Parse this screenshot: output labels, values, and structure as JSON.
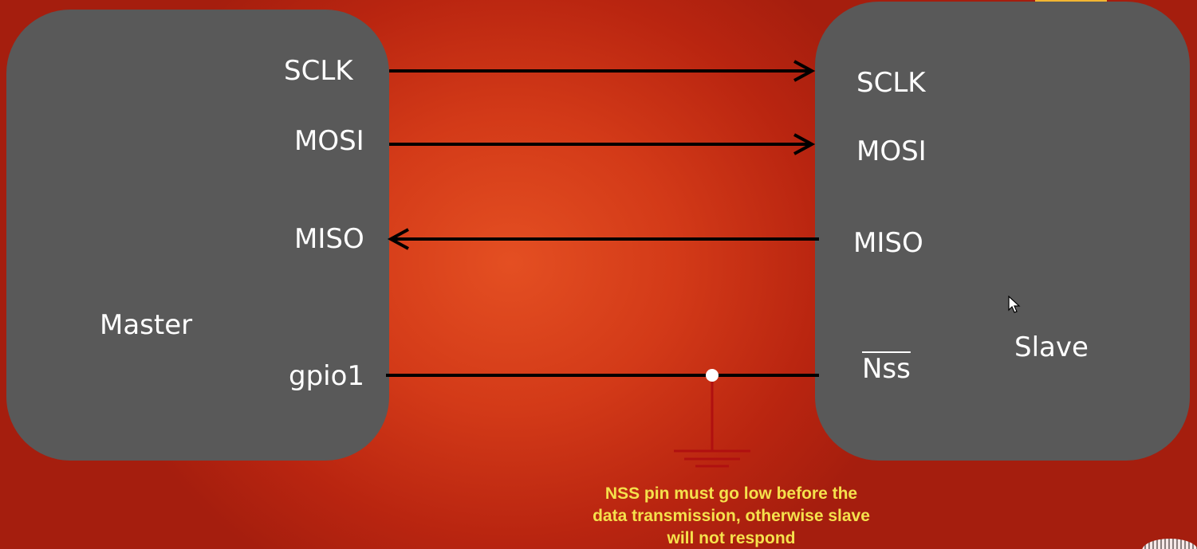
{
  "master": {
    "title": "Master",
    "pins": {
      "sclk": "SCLK",
      "mosi": "MOSI",
      "miso": "MISO",
      "gpio": "gpio1"
    }
  },
  "slave": {
    "title": "Slave",
    "pins": {
      "sclk": "SCLK",
      "mosi": "MOSI",
      "miso": "MISO",
      "nss": "Nss"
    }
  },
  "note": {
    "line1": "NSS pin must go low before the",
    "line2": "data transmission, otherwise slave",
    "line3": "will not respond"
  },
  "colors": {
    "box": "#595959",
    "wire": "#000000",
    "ground": "#b01010",
    "note_text": "#f5e14c",
    "background": "#d33a18"
  }
}
